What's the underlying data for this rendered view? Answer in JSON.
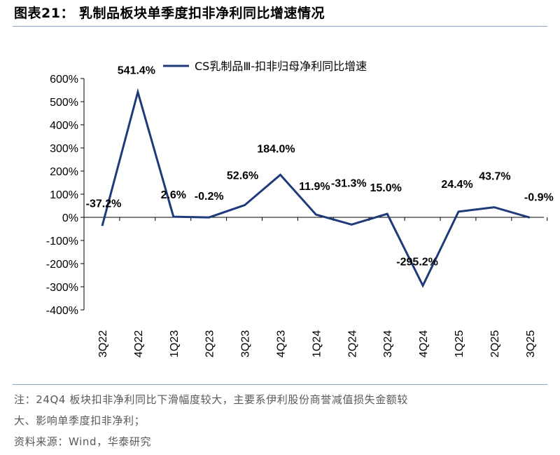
{
  "header": {
    "title": "图表21：  乳制品板块单季度扣非净利同比增速情况"
  },
  "chart_data": {
    "type": "line",
    "title": "图表21：  乳制品板块单季度扣非净利同比增速情况",
    "categories": [
      "3Q22",
      "4Q22",
      "1Q23",
      "2Q23",
      "3Q23",
      "4Q23",
      "1Q24",
      "2Q24",
      "3Q24",
      "4Q24",
      "1Q25",
      "2Q25",
      "3Q25"
    ],
    "series": [
      {
        "name": "CS乳制品Ⅲ-扣非归母净利同比增速",
        "values": [
          -37.2,
          541.4,
          2.6,
          -0.2,
          52.6,
          184.0,
          11.9,
          -31.3,
          15.0,
          -295.2,
          24.4,
          43.7,
          -0.9
        ],
        "labels": [
          "-37.2%",
          "541.4%",
          "2.6%",
          "-0.2%",
          "52.6%",
          "184.0%",
          "11.9%",
          "-31.3%",
          "15.0%",
          "-295.2%",
          "24.4%",
          "43.7%",
          "-0.9%"
        ],
        "color": "#1f3a7a"
      }
    ],
    "ylim": [
      -400,
      600
    ],
    "yticks": [
      -400,
      -300,
      -200,
      -100,
      0,
      100,
      200,
      300,
      400,
      500,
      600
    ],
    "ytick_labels": [
      "-400%",
      "-300%",
      "-200%",
      "-100%",
      "0%",
      "100%",
      "200%",
      "300%",
      "400%",
      "500%",
      "600%"
    ],
    "xlabel": "",
    "ylabel": "",
    "legend": "top-center",
    "grid": false
  },
  "footer": {
    "note_line1": "注：24Q4 板块扣非净利同比下滑幅度较大，主要系伊利股份商誉减值损失金额较",
    "note_line2": "大、影响单季度扣非净利；",
    "source": "资料来源：Wind，华泰研究"
  },
  "colors": {
    "line": "#1f3a7a",
    "rule": "#8fa3c4",
    "note": "#595959"
  }
}
